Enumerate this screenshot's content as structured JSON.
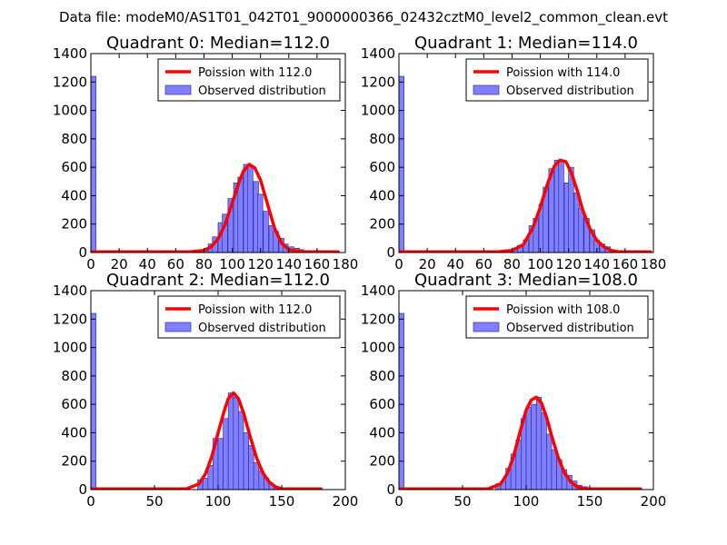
{
  "suptitle": "Data file: modeM0/AS1T01_042T01_9000000366_02432cztM0_level2_common_clean.evt",
  "colors": {
    "bar_fill": "#8080ff",
    "bar_edge": "#3030b0",
    "curve": "#ff0000",
    "axes": "#000000"
  },
  "chart_data": [
    {
      "type": "bar",
      "title": "Quadrant 0: Median=112.0",
      "xlim": [
        0,
        180
      ],
      "ylim": [
        0,
        1400
      ],
      "xticks": [
        0,
        20,
        40,
        60,
        80,
        100,
        120,
        140,
        160,
        180
      ],
      "yticks": [
        0,
        200,
        400,
        600,
        800,
        1000,
        1200,
        1400
      ],
      "bin_width": 3.6,
      "bins": [
        {
          "x": 0,
          "y": 1240
        },
        {
          "x": 79,
          "y": 20
        },
        {
          "x": 83,
          "y": 60
        },
        {
          "x": 86,
          "y": 110
        },
        {
          "x": 90,
          "y": 210
        },
        {
          "x": 93,
          "y": 270
        },
        {
          "x": 97,
          "y": 380
        },
        {
          "x": 101,
          "y": 490
        },
        {
          "x": 104,
          "y": 530
        },
        {
          "x": 108,
          "y": 620
        },
        {
          "x": 111,
          "y": 610
        },
        {
          "x": 115,
          "y": 500
        },
        {
          "x": 118,
          "y": 410
        },
        {
          "x": 122,
          "y": 290
        },
        {
          "x": 126,
          "y": 190
        },
        {
          "x": 129,
          "y": 150
        },
        {
          "x": 133,
          "y": 100
        },
        {
          "x": 136,
          "y": 60
        },
        {
          "x": 140,
          "y": 40
        },
        {
          "x": 144,
          "y": 30
        },
        {
          "x": 147,
          "y": 20
        },
        {
          "x": 151,
          "y": 10
        }
      ],
      "curve": {
        "x": [
          0,
          70,
          80,
          85,
          90,
          95,
          100,
          105,
          108,
          112,
          116,
          120,
          125,
          130,
          135,
          140,
          150,
          175
        ],
        "y": [
          5,
          5,
          15,
          40,
          95,
          200,
          350,
          500,
          575,
          620,
          595,
          510,
          340,
          170,
          65,
          20,
          5,
          5
        ]
      },
      "legend": [
        "Poission with 112.0",
        "Observed distribution"
      ]
    },
    {
      "type": "bar",
      "title": "Quadrant 1: Median=114.0",
      "xlim": [
        0,
        180
      ],
      "ylim": [
        0,
        1400
      ],
      "xticks": [
        0,
        20,
        40,
        60,
        80,
        100,
        120,
        140,
        160,
        180
      ],
      "yticks": [
        0,
        200,
        400,
        600,
        800,
        1000,
        1200,
        1400
      ],
      "bin_width": 3.6,
      "bins": [
        {
          "x": 0,
          "y": 1240
        },
        {
          "x": 81,
          "y": 20
        },
        {
          "x": 84,
          "y": 50
        },
        {
          "x": 88,
          "y": 90
        },
        {
          "x": 92,
          "y": 190
        },
        {
          "x": 95,
          "y": 240
        },
        {
          "x": 99,
          "y": 340
        },
        {
          "x": 102,
          "y": 460
        },
        {
          "x": 106,
          "y": 590
        },
        {
          "x": 110,
          "y": 650
        },
        {
          "x": 113,
          "y": 640
        },
        {
          "x": 117,
          "y": 490
        },
        {
          "x": 120,
          "y": 600
        },
        {
          "x": 124,
          "y": 420
        },
        {
          "x": 127,
          "y": 310
        },
        {
          "x": 131,
          "y": 240
        },
        {
          "x": 135,
          "y": 160
        },
        {
          "x": 138,
          "y": 90
        },
        {
          "x": 142,
          "y": 60
        },
        {
          "x": 146,
          "y": 40
        },
        {
          "x": 149,
          "y": 20
        },
        {
          "x": 153,
          "y": 10
        }
      ],
      "curve": {
        "x": [
          0,
          70,
          80,
          88,
          95,
          100,
          105,
          110,
          114,
          118,
          122,
          126,
          130,
          135,
          140,
          145,
          150,
          155,
          178
        ],
        "y": [
          5,
          5,
          15,
          55,
          180,
          320,
          480,
          610,
          650,
          640,
          560,
          440,
          300,
          170,
          85,
          40,
          15,
          5,
          5
        ]
      },
      "legend": [
        "Poission with 114.0",
        "Observed distribution"
      ]
    },
    {
      "type": "bar",
      "title": "Quadrant 2: Median=112.0",
      "xlim": [
        0,
        200
      ],
      "ylim": [
        0,
        1400
      ],
      "xticks": [
        0,
        50,
        100,
        150,
        200
      ],
      "yticks": [
        0,
        200,
        400,
        600,
        800,
        1000,
        1200,
        1400
      ],
      "bin_width": 4,
      "bins": [
        {
          "x": 0,
          "y": 1240
        },
        {
          "x": 84,
          "y": 70
        },
        {
          "x": 88,
          "y": 80
        },
        {
          "x": 92,
          "y": 170
        },
        {
          "x": 96,
          "y": 360
        },
        {
          "x": 100,
          "y": 360
        },
        {
          "x": 104,
          "y": 500
        },
        {
          "x": 108,
          "y": 680
        },
        {
          "x": 112,
          "y": 650
        },
        {
          "x": 116,
          "y": 550
        },
        {
          "x": 120,
          "y": 400
        },
        {
          "x": 124,
          "y": 310
        },
        {
          "x": 128,
          "y": 190
        },
        {
          "x": 132,
          "y": 130
        },
        {
          "x": 136,
          "y": 80
        },
        {
          "x": 140,
          "y": 40
        },
        {
          "x": 144,
          "y": 20
        },
        {
          "x": 148,
          "y": 10
        }
      ],
      "curve": {
        "x": [
          0,
          75,
          85,
          90,
          95,
          100,
          105,
          108,
          112,
          116,
          120,
          125,
          130,
          135,
          140,
          145,
          150,
          181
        ],
        "y": [
          5,
          5,
          40,
          110,
          230,
          400,
          560,
          640,
          680,
          640,
          540,
          380,
          230,
          120,
          55,
          20,
          5,
          5
        ]
      },
      "legend": [
        "Poission with 112.0",
        "Observed distribution"
      ]
    },
    {
      "type": "bar",
      "title": "Quadrant 3: Median=108.0",
      "xlim": [
        0,
        200
      ],
      "ylim": [
        0,
        1400
      ],
      "xticks": [
        0,
        50,
        100,
        150,
        200
      ],
      "yticks": [
        0,
        200,
        400,
        600,
        800,
        1000,
        1200,
        1400
      ],
      "bin_width": 4,
      "bins": [
        {
          "x": 0,
          "y": 1240
        },
        {
          "x": 76,
          "y": 40
        },
        {
          "x": 80,
          "y": 60
        },
        {
          "x": 84,
          "y": 150
        },
        {
          "x": 88,
          "y": 250
        },
        {
          "x": 92,
          "y": 350
        },
        {
          "x": 96,
          "y": 500
        },
        {
          "x": 100,
          "y": 580
        },
        {
          "x": 104,
          "y": 600
        },
        {
          "x": 108,
          "y": 650
        },
        {
          "x": 112,
          "y": 540
        },
        {
          "x": 116,
          "y": 390
        },
        {
          "x": 120,
          "y": 280
        },
        {
          "x": 124,
          "y": 210
        },
        {
          "x": 128,
          "y": 140
        },
        {
          "x": 132,
          "y": 100
        },
        {
          "x": 136,
          "y": 60
        },
        {
          "x": 140,
          "y": 30
        },
        {
          "x": 144,
          "y": 20
        }
      ],
      "curve": {
        "x": [
          0,
          70,
          80,
          85,
          90,
          95,
          100,
          104,
          108,
          112,
          116,
          120,
          125,
          130,
          135,
          140,
          145,
          150,
          190
        ],
        "y": [
          5,
          5,
          40,
          110,
          230,
          400,
          560,
          630,
          650,
          610,
          510,
          380,
          230,
          120,
          55,
          20,
          8,
          5,
          5
        ]
      },
      "legend": [
        "Poission with 108.0",
        "Observed distribution"
      ]
    }
  ]
}
